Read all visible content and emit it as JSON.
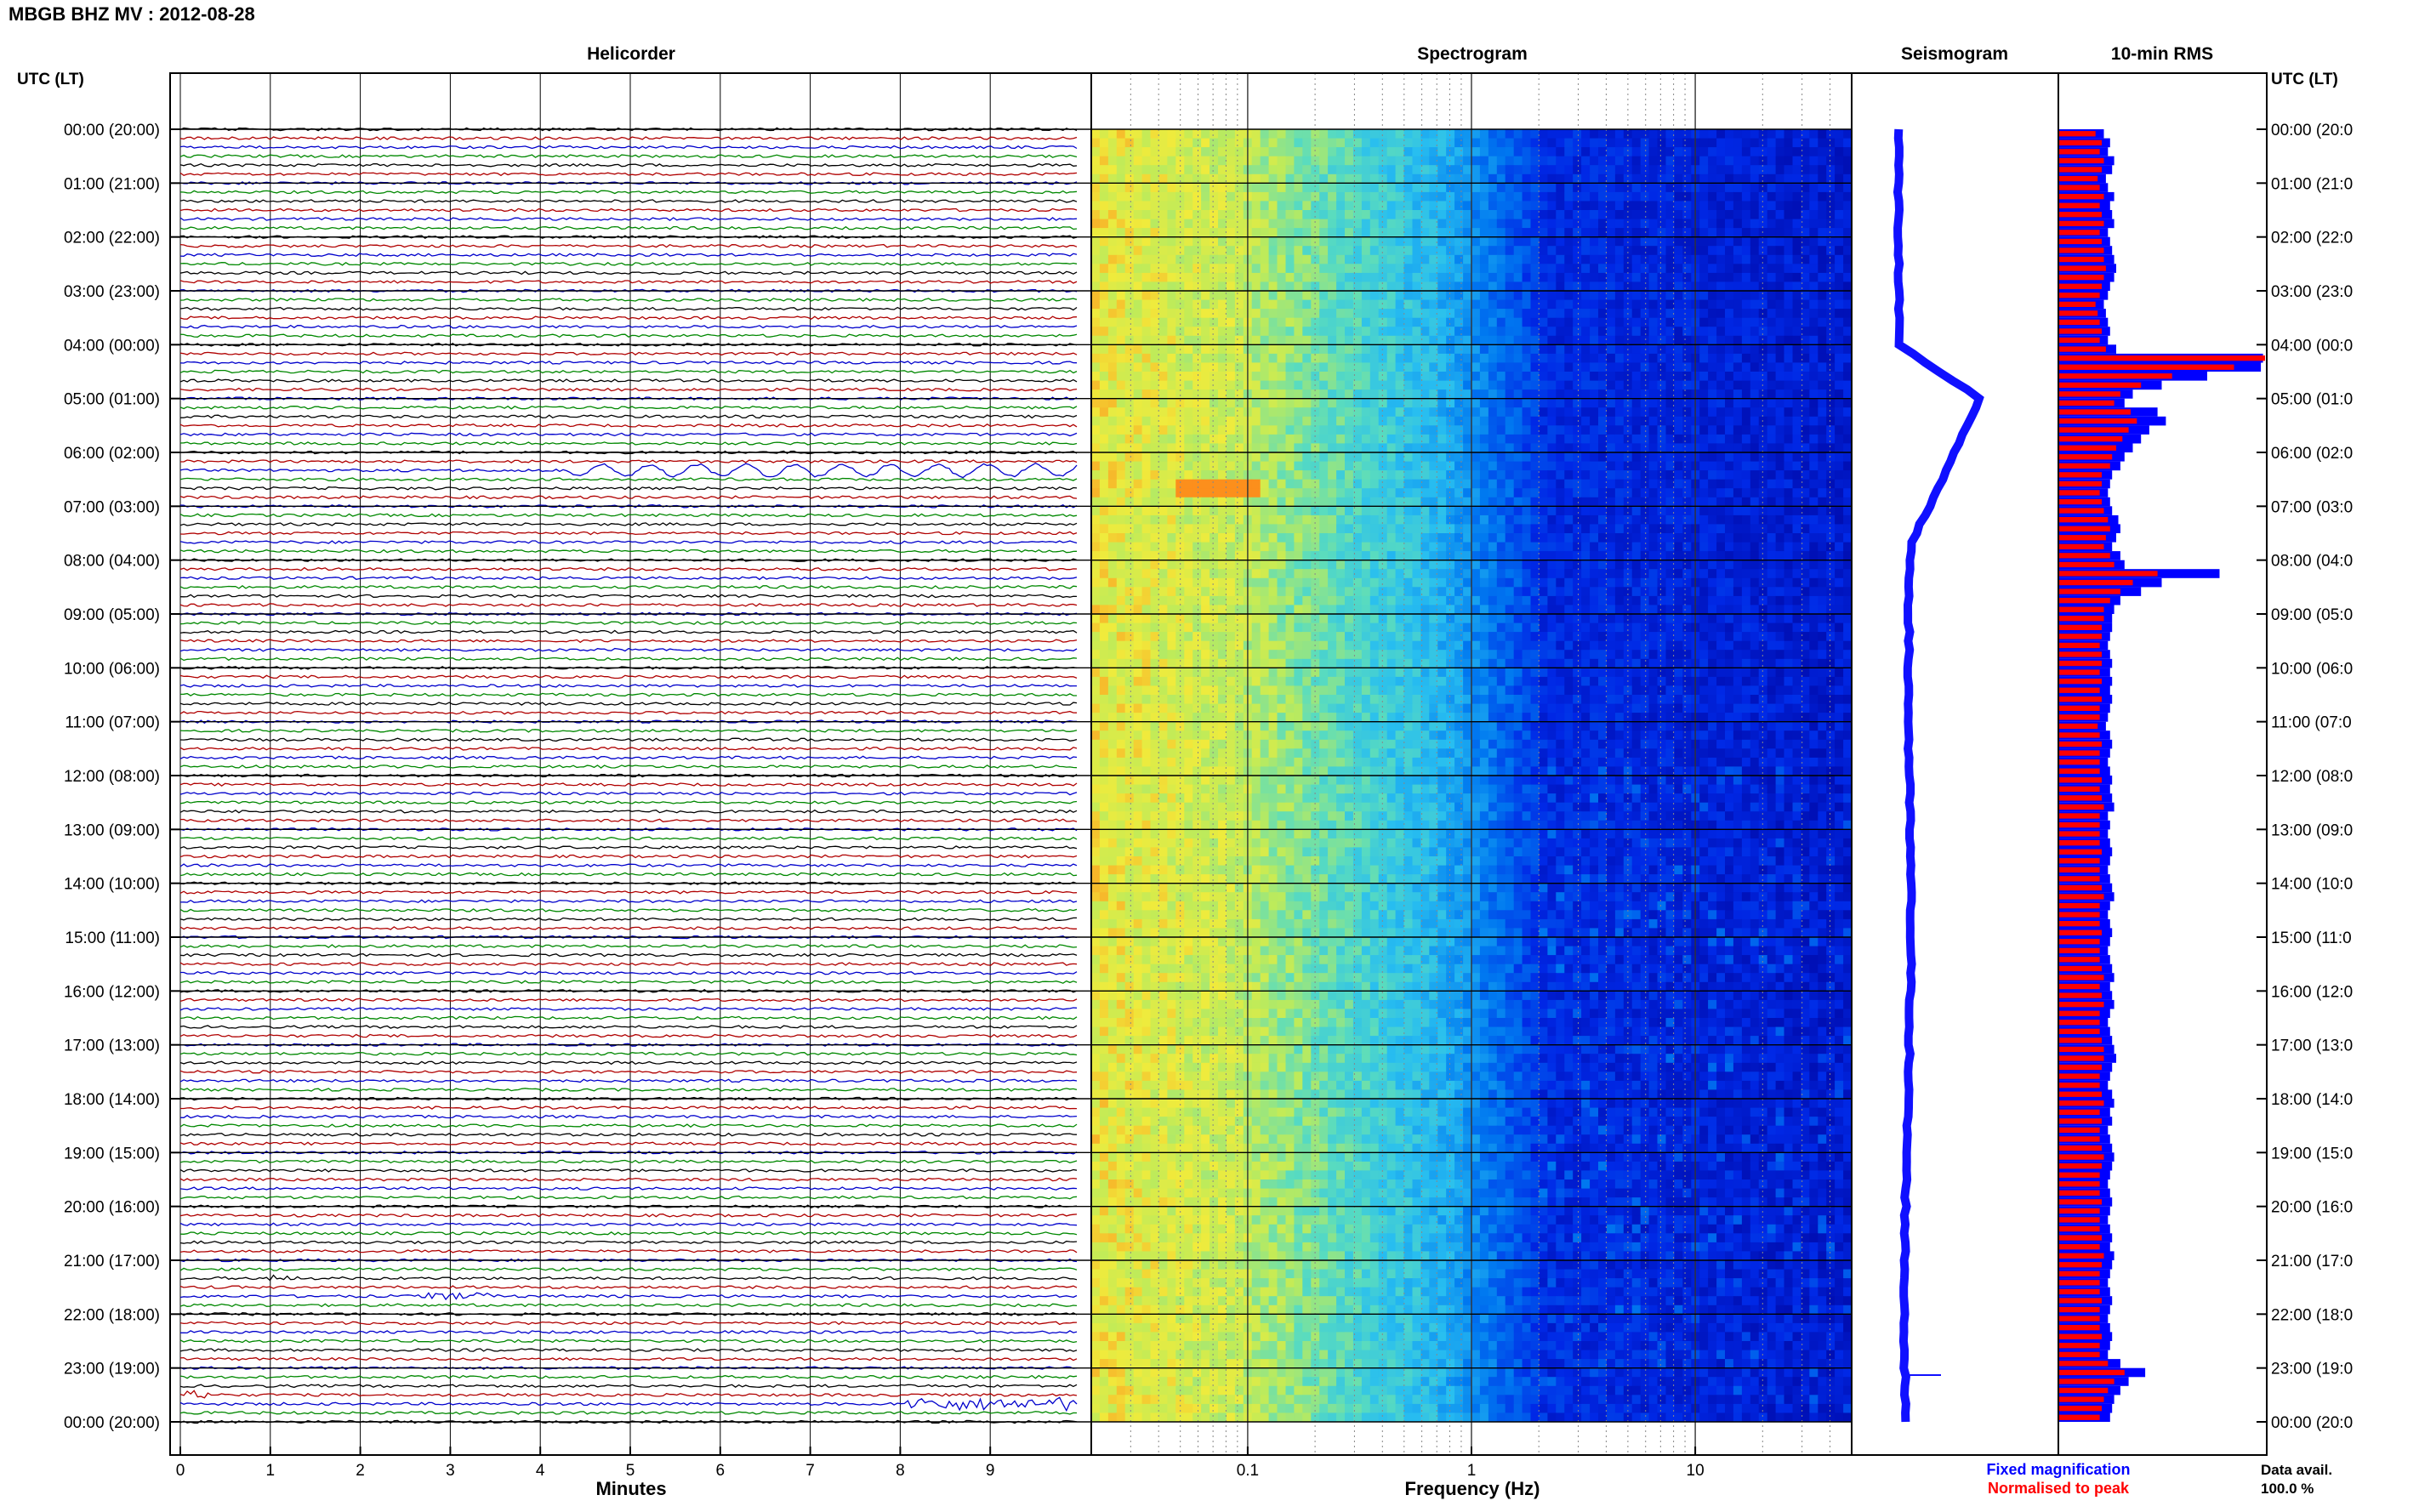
{
  "header": {
    "title": "MBGB BHZ MV : 2012-08-28"
  },
  "panels": {
    "helicorder": "Helicorder",
    "spectrogram": "Spectrogram",
    "seismogram": "Seismogram",
    "rms": "10-min RMS"
  },
  "left_axis_title": "UTC (LT)",
  "right_axis_title": "UTC (LT)",
  "footer": {
    "minutes_label": "Minutes",
    "frequency_label": "Frequency (Hz)",
    "fixed_magnification": "Fixed magnification",
    "normalised_to_peak": "Normalised to peak",
    "data_avail_label": "Data avail.",
    "data_avail_value": "100.0 %"
  },
  "colors": {
    "trace_cycle": [
      "#000000",
      "#b00000",
      "#0000cc",
      "#008800"
    ],
    "fixed_bar": "#0000ff",
    "normalised_bar": "#ff0000",
    "fixed_text": "#0000ff",
    "normalised_text": "#ff0000"
  },
  "chart_data": {
    "type": "heatmap",
    "time_labels_left": [
      "00:00 (20:00)",
      "01:00 (21:00)",
      "02:00 (22:00)",
      "03:00 (23:00)",
      "04:00 (00:00)",
      "05:00 (01:00)",
      "06:00 (02:00)",
      "07:00 (03:00)",
      "08:00 (04:00)",
      "09:00 (05:00)",
      "10:00 (06:00)",
      "11:00 (07:00)",
      "12:00 (08:00)",
      "13:00 (09:00)",
      "14:00 (10:00)",
      "15:00 (11:00)",
      "16:00 (12:00)",
      "17:00 (13:00)",
      "18:00 (14:00)",
      "19:00 (15:00)",
      "20:00 (16:00)",
      "21:00 (17:00)",
      "22:00 (18:00)",
      "23:00 (19:00)",
      "00:00 (20:00)"
    ],
    "time_labels_right": [
      "00:00 (20:0",
      "01:00 (21:0",
      "02:00 (22:0",
      "03:00 (23:0",
      "04:00 (00:0",
      "05:00 (01:0",
      "06:00 (02:0",
      "07:00 (03:0",
      "08:00 (04:0",
      "09:00 (05:0",
      "10:00 (06:0",
      "11:00 (07:0",
      "12:00 (08:0",
      "13:00 (09:0",
      "14:00 (10:0",
      "15:00 (11:0",
      "16:00 (12:0",
      "17:00 (13:0",
      "18:00 (14:0",
      "19:00 (15:0",
      "20:00 (16:0",
      "21:00 (17:0",
      "22:00 (18:0",
      "23:00 (19:0",
      "00:00 (20:0"
    ],
    "helicorder": {
      "xlabel": "Minutes",
      "x_ticks": [
        0,
        1,
        2,
        3,
        4,
        5,
        6,
        7,
        8,
        9
      ],
      "xlim": [
        0,
        10
      ],
      "rows_per_hour": 6,
      "hours": 24
    },
    "spectrogram": {
      "xlabel": "Frequency (Hz)",
      "x_scale": "log",
      "x_ticks": [
        0.1,
        1,
        10
      ],
      "xlim": [
        0.02,
        50
      ]
    },
    "rms": {
      "rows": 144,
      "values_fixed_blue": [
        0.22,
        0.25,
        0.24,
        0.27,
        0.26,
        0.23,
        0.24,
        0.27,
        0.25,
        0.26,
        0.27,
        0.24,
        0.25,
        0.26,
        0.27,
        0.28,
        0.27,
        0.25,
        0.24,
        0.22,
        0.23,
        0.24,
        0.25,
        0.24,
        0.28,
        0.99,
        0.98,
        0.72,
        0.5,
        0.36,
        0.32,
        0.48,
        0.52,
        0.44,
        0.4,
        0.36,
        0.32,
        0.3,
        0.26,
        0.25,
        0.24,
        0.25,
        0.26,
        0.29,
        0.3,
        0.28,
        0.26,
        0.3,
        0.32,
        0.78,
        0.5,
        0.4,
        0.3,
        0.27,
        0.26,
        0.26,
        0.25,
        0.24,
        0.25,
        0.26,
        0.25,
        0.26,
        0.25,
        0.26,
        0.25,
        0.24,
        0.23,
        0.25,
        0.26,
        0.25,
        0.24,
        0.25,
        0.26,
        0.25,
        0.26,
        0.27,
        0.24,
        0.25,
        0.24,
        0.25,
        0.26,
        0.25,
        0.24,
        0.25,
        0.26,
        0.27,
        0.25,
        0.24,
        0.25,
        0.26,
        0.25,
        0.24,
        0.25,
        0.26,
        0.27,
        0.25,
        0.26,
        0.27,
        0.25,
        0.24,
        0.25,
        0.26,
        0.27,
        0.28,
        0.26,
        0.25,
        0.24,
        0.26,
        0.27,
        0.25,
        0.26,
        0.24,
        0.25,
        0.26,
        0.27,
        0.26,
        0.25,
        0.24,
        0.25,
        0.26,
        0.25,
        0.24,
        0.25,
        0.26,
        0.25,
        0.27,
        0.26,
        0.25,
        0.24,
        0.25,
        0.26,
        0.25,
        0.24,
        0.25,
        0.26,
        0.25,
        0.24,
        0.3,
        0.42,
        0.34,
        0.3,
        0.27,
        0.26,
        0.25
      ],
      "values_normalised_red": [
        0.18,
        0.21,
        0.2,
        0.22,
        0.21,
        0.19,
        0.2,
        0.22,
        0.2,
        0.21,
        0.22,
        0.2,
        0.21,
        0.22,
        0.22,
        0.23,
        0.22,
        0.21,
        0.2,
        0.18,
        0.19,
        0.2,
        0.21,
        0.2,
        0.23,
        1.0,
        0.85,
        0.55,
        0.4,
        0.3,
        0.27,
        0.35,
        0.38,
        0.34,
        0.31,
        0.28,
        0.26,
        0.25,
        0.21,
        0.21,
        0.2,
        0.21,
        0.22,
        0.24,
        0.25,
        0.23,
        0.22,
        0.25,
        0.27,
        0.48,
        0.36,
        0.3,
        0.25,
        0.22,
        0.22,
        0.21,
        0.21,
        0.2,
        0.21,
        0.21,
        0.2,
        0.21,
        0.2,
        0.21,
        0.2,
        0.2,
        0.19,
        0.2,
        0.21,
        0.2,
        0.2,
        0.2,
        0.21,
        0.2,
        0.21,
        0.22,
        0.2,
        0.2,
        0.2,
        0.2,
        0.21,
        0.2,
        0.2,
        0.2,
        0.21,
        0.22,
        0.2,
        0.2,
        0.2,
        0.21,
        0.2,
        0.2,
        0.2,
        0.21,
        0.22,
        0.2,
        0.21,
        0.22,
        0.2,
        0.2,
        0.2,
        0.21,
        0.22,
        0.22,
        0.21,
        0.2,
        0.2,
        0.21,
        0.22,
        0.2,
        0.21,
        0.2,
        0.2,
        0.21,
        0.22,
        0.21,
        0.2,
        0.2,
        0.2,
        0.21,
        0.2,
        0.2,
        0.2,
        0.21,
        0.2,
        0.22,
        0.21,
        0.2,
        0.2,
        0.2,
        0.21,
        0.2,
        0.2,
        0.2,
        0.21,
        0.2,
        0.2,
        0.24,
        0.32,
        0.27,
        0.24,
        0.22,
        0.21,
        0.2
      ]
    }
  }
}
